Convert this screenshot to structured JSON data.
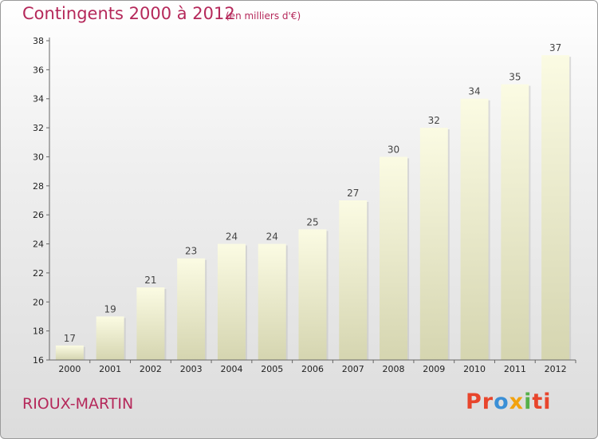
{
  "title": "Contingents 2000 à 2012",
  "subtitle": "(en milliers d'€)",
  "commune": "RIOUX-MARTIN",
  "logo": {
    "p1": "Pr",
    "p2": "o",
    "p3": "x",
    "p4": "i",
    "p5": "ti"
  },
  "colors": {
    "title": "#b5285a",
    "bar_top": "#fbfbe3",
    "bar_bottom": "#d5d5b0",
    "axis": "#666666"
  },
  "chart_data": {
    "type": "bar",
    "categories": [
      "2000",
      "2001",
      "2002",
      "2003",
      "2004",
      "2005",
      "2006",
      "2007",
      "2008",
      "2009",
      "2010",
      "2011",
      "2012"
    ],
    "values": [
      17,
      19,
      21,
      23,
      24,
      24,
      25,
      27,
      30,
      32,
      34,
      35,
      37
    ],
    "yticks": [
      16,
      18,
      20,
      22,
      24,
      26,
      28,
      30,
      32,
      34,
      36,
      38
    ],
    "ylim": [
      16,
      38
    ],
    "title": "Contingents 2000 à 2012",
    "xlabel": "",
    "ylabel": "",
    "grid": false,
    "legend": "none"
  }
}
